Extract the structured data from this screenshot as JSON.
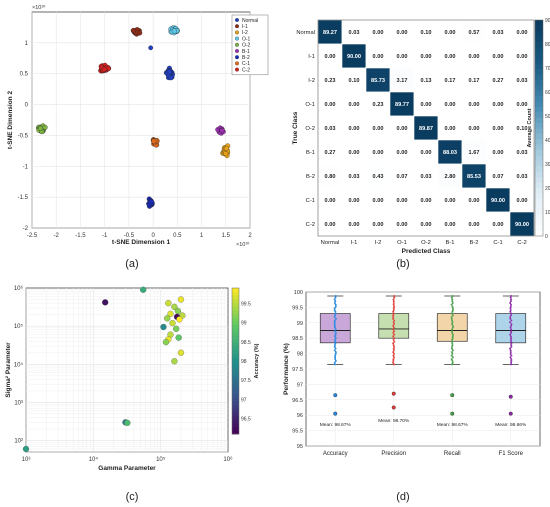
{
  "panel_labels": [
    "(a)",
    "(b)",
    "(c)",
    "(d)"
  ],
  "chart_data": [
    {
      "type": "scatter",
      "panel": "(a)",
      "title": "",
      "xlabel": "t-SNE Dimension 1",
      "ylabel": "t-SNE Dimension 2",
      "x_exponent": "×10¹⁰",
      "y_exponent": "×10¹⁰",
      "xlim": [
        -2.5,
        2
      ],
      "ylim": [
        -2,
        1.5
      ],
      "xticks": [
        "-2.5",
        "-2",
        "-1.5",
        "-1",
        "-0.5",
        "0",
        "0.5",
        "1",
        "1.5",
        "2"
      ],
      "yticks": [
        "-2",
        "-1.5",
        "-1",
        "-0.5",
        "0",
        "0.5",
        "1"
      ],
      "grid": true,
      "legend_position": "top-right",
      "series": [
        {
          "name": "Normal",
          "color": "#1f3fbf",
          "center": [
            0.35,
            0.5
          ],
          "spread": [
            0.1,
            0.13
          ],
          "n": 30
        },
        {
          "name": "I-1",
          "color": "#8c2d19",
          "center": [
            -0.35,
            1.18
          ],
          "spread": [
            0.14,
            0.07
          ],
          "n": 30
        },
        {
          "name": "I-2",
          "color": "#e8a21a",
          "center": [
            1.5,
            -0.75
          ],
          "spread": [
            0.09,
            0.11
          ],
          "n": 30
        },
        {
          "name": "O-1",
          "color": "#5ec8e8",
          "center": [
            0.45,
            1.2
          ],
          "spread": [
            0.12,
            0.07
          ],
          "n": 30
        },
        {
          "name": "O-2",
          "color": "#7cb342",
          "center": [
            -2.3,
            -0.4
          ],
          "spread": [
            0.13,
            0.08
          ],
          "n": 30
        },
        {
          "name": "B-1",
          "color": "#9b30b0",
          "center": [
            1.4,
            -0.42
          ],
          "spread": [
            0.1,
            0.07
          ],
          "n": 30
        },
        {
          "name": "B-2",
          "color": "#1a2bb5",
          "center": [
            -0.05,
            -1.6
          ],
          "spread": [
            0.07,
            0.1
          ],
          "n": 30
        },
        {
          "name": "C-1",
          "color": "#e06b1c",
          "center": [
            0.05,
            -0.6
          ],
          "spread": [
            0.08,
            0.08
          ],
          "n": 30
        },
        {
          "name": "C-2",
          "color": "#d42020",
          "center": [
            -1.0,
            0.58
          ],
          "spread": [
            0.14,
            0.09
          ],
          "n": 30
        }
      ]
    },
    {
      "type": "heatmap",
      "panel": "(b)",
      "title": "",
      "xlabel": "Predicted Class",
      "ylabel": "True Class",
      "colorbar_label": "Average Count",
      "colorbar_ticks": [
        "0",
        "10",
        "20",
        "30",
        "40",
        "50",
        "60",
        "70",
        "80",
        "90"
      ],
      "classes": [
        "Normal",
        "I-1",
        "I-2",
        "O-1",
        "O-2",
        "B-1",
        "B-2",
        "C-1",
        "C-2"
      ],
      "values": [
        [
          89.27,
          0.03,
          0.0,
          0.0,
          0.1,
          0.0,
          0.57,
          0.03,
          0.0
        ],
        [
          0.0,
          90.0,
          0.0,
          0.0,
          0.0,
          0.0,
          0.0,
          0.0,
          0.0
        ],
        [
          0.23,
          0.1,
          85.73,
          3.17,
          0.13,
          0.17,
          0.17,
          0.27,
          0.03
        ],
        [
          0.0,
          0.0,
          0.23,
          89.77,
          0.0,
          0.0,
          0.0,
          0.0,
          0.0
        ],
        [
          0.03,
          0.0,
          0.0,
          0.0,
          89.87,
          0.0,
          0.0,
          0.0,
          0.1
        ],
        [
          0.27,
          0.0,
          0.0,
          0.0,
          0.0,
          88.03,
          1.67,
          0.0,
          0.03
        ],
        [
          0.8,
          0.03,
          0.43,
          0.07,
          0.03,
          2.8,
          85.53,
          0.07,
          0.03
        ],
        [
          0.0,
          0.0,
          0.0,
          0.0,
          0.0,
          0.0,
          0.0,
          90.0,
          0.0
        ],
        [
          0.0,
          0.0,
          0.0,
          0.0,
          0.0,
          0.0,
          0.0,
          0.0,
          90.0
        ]
      ]
    },
    {
      "type": "scatter",
      "panel": "(c)",
      "title": "",
      "xlabel": "Gamma Parameter",
      "ylabel": "Sigma² Parameter",
      "xscale": "log",
      "yscale": "log",
      "xlim": [
        1000,
        1000000
      ],
      "ylim": [
        50,
        1000000
      ],
      "xticks": [
        "10³",
        "10⁴",
        "10⁵",
        "10⁶"
      ],
      "yticks": [
        "10²",
        "10³",
        "10⁴",
        "10⁵",
        "10⁶"
      ],
      "colorbar_label": "Accuracy (%)",
      "colorbar_range": [
        96.1,
        99.9
      ],
      "colorbar_ticks": [
        "96.5",
        "97",
        "97.5",
        "98",
        "98.5",
        "99",
        "99.5"
      ],
      "grid": true,
      "points": [
        {
          "x": 1000,
          "y": 60,
          "acc": 98.2
        },
        {
          "x": 15000,
          "y": 420000,
          "acc": 96.3
        },
        {
          "x": 55000,
          "y": 900000,
          "acc": 98.4
        },
        {
          "x": 30000,
          "y": 300,
          "acc": 97.6
        },
        {
          "x": 32000,
          "y": 290,
          "acc": 98.7
        },
        {
          "x": 130000,
          "y": 400000,
          "acc": 99.6
        },
        {
          "x": 160000,
          "y": 320000,
          "acc": 99.4
        },
        {
          "x": 200000,
          "y": 500000,
          "acc": 99.8
        },
        {
          "x": 180000,
          "y": 250000,
          "acc": 99.2
        },
        {
          "x": 140000,
          "y": 210000,
          "acc": 99.7
        },
        {
          "x": 210000,
          "y": 190000,
          "acc": 99.5
        },
        {
          "x": 175000,
          "y": 175000,
          "acc": 96.2
        },
        {
          "x": 125000,
          "y": 160000,
          "acc": 99.3
        },
        {
          "x": 190000,
          "y": 150000,
          "acc": 99.9
        },
        {
          "x": 150000,
          "y": 120000,
          "acc": 99.6
        },
        {
          "x": 110000,
          "y": 95000,
          "acc": 97.9
        },
        {
          "x": 170000,
          "y": 85000,
          "acc": 99.1
        },
        {
          "x": 140000,
          "y": 60000,
          "acc": 99.5
        },
        {
          "x": 185000,
          "y": 50000,
          "acc": 98.9
        },
        {
          "x": 130000,
          "y": 45000,
          "acc": 99.8
        },
        {
          "x": 200000,
          "y": 20000,
          "acc": 99.7
        },
        {
          "x": 160000,
          "y": 12000,
          "acc": 99.4
        },
        {
          "x": 120000,
          "y": 38000,
          "acc": 99.2
        }
      ]
    },
    {
      "type": "box",
      "panel": "(d)",
      "title": "",
      "xlabel": "",
      "ylabel": "Performance (%)",
      "ylim": [
        95,
        100
      ],
      "yticks": [
        "95",
        "95.5",
        "96",
        "96.5",
        "97",
        "97.5",
        "98",
        "98.5",
        "99",
        "99.5",
        "100"
      ],
      "grid": true,
      "categories": [
        "Accuracy",
        "Precision",
        "Recall",
        "F1 Score"
      ],
      "boxes": [
        {
          "name": "Accuracy",
          "color": "#c9a8d9",
          "dot_color": "#1e88e5",
          "q1": 98.35,
          "median": 98.75,
          "q3": 99.3,
          "whisker_low": 97.65,
          "whisker_high": 99.87,
          "outliers": [
            96.65,
            96.05
          ],
          "mean_label": "Mean: 98.67%"
        },
        {
          "name": "Precision",
          "color": "#c5dfb0",
          "dot_color": "#e53935",
          "q1": 98.5,
          "median": 98.8,
          "q3": 99.3,
          "whisker_low": 97.65,
          "whisker_high": 99.87,
          "outliers": [
            96.7,
            96.25
          ],
          "mean_label": "Mean: 98.70%"
        },
        {
          "name": "Recall",
          "color": "#f2d5a8",
          "dot_color": "#43a047",
          "q1": 98.4,
          "median": 98.75,
          "q3": 99.3,
          "whisker_low": 97.65,
          "whisker_high": 99.87,
          "outliers": [
            96.65,
            96.05
          ],
          "mean_label": "Mean: 98.67%"
        },
        {
          "name": "F1 Score",
          "color": "#aed4ea",
          "dot_color": "#8e24aa",
          "q1": 98.35,
          "median": 98.75,
          "q3": 99.3,
          "whisker_low": 97.65,
          "whisker_high": 99.87,
          "outliers": [
            96.6,
            96.05
          ],
          "mean_label": "Mean: 98.66%"
        }
      ]
    }
  ]
}
